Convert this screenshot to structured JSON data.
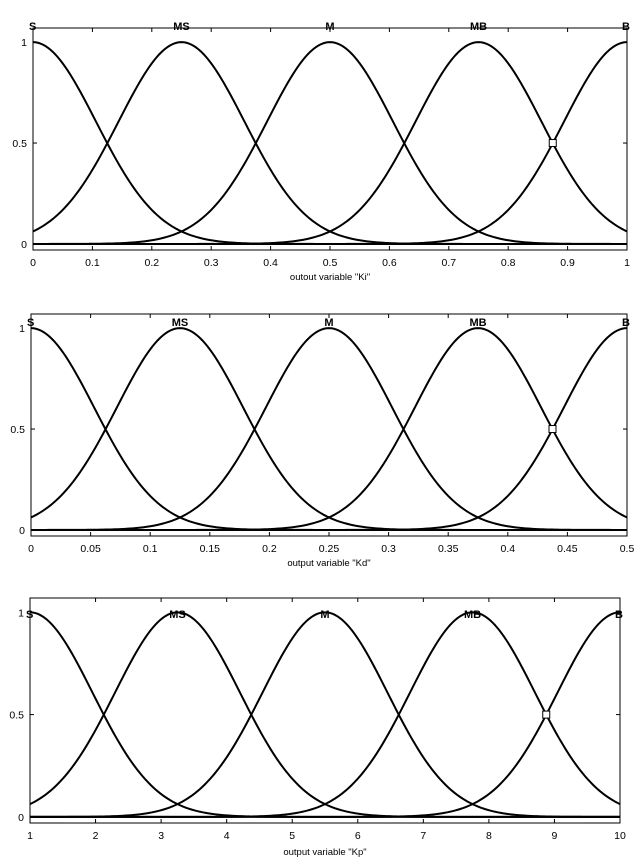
{
  "colors": {
    "background": "#ffffff",
    "curve": "#000000",
    "axes": "#000000"
  },
  "chart_data": [
    {
      "type": "line",
      "title": "",
      "xlabel": "outout variable \"Ki\"",
      "ylabel": "",
      "xlim": [
        0,
        1
      ],
      "ylim": [
        -0.03,
        1.07
      ],
      "grid": false,
      "x_ticks": [
        0,
        0.1,
        0.2,
        0.3,
        0.4,
        0.5,
        0.6,
        0.7,
        0.8,
        0.9,
        1
      ],
      "x_tick_labels": [
        "0",
        "0.1",
        "0.2",
        "0.3",
        "0.4",
        "0.5",
        "0.6",
        "0.7",
        "0.8",
        "0.9",
        "1"
      ],
      "y_ticks": [
        0,
        0.5,
        1
      ],
      "y_tick_labels": [
        "0",
        "0.5",
        "1"
      ],
      "membership_function": "gaussian",
      "sigma": 0.106,
      "series": [
        {
          "name": "S",
          "center": 0
        },
        {
          "name": "MS",
          "center": 0.25
        },
        {
          "name": "M",
          "center": 0.5
        },
        {
          "name": "MB",
          "center": 0.75
        },
        {
          "name": "B",
          "center": 1
        }
      ],
      "marker": {
        "x": 0.875,
        "y": 0.5
      }
    },
    {
      "type": "line",
      "title": "",
      "xlabel": "output variable \"Kd\"",
      "ylabel": "",
      "xlim": [
        0,
        0.5
      ],
      "ylim": [
        -0.03,
        1.07
      ],
      "grid": false,
      "x_ticks": [
        0,
        0.05,
        0.1,
        0.15,
        0.2,
        0.25,
        0.3,
        0.35,
        0.4,
        0.45,
        0.5
      ],
      "x_tick_labels": [
        "0",
        "0.05",
        "0.1",
        "0.15",
        "0.2",
        "0.25",
        "0.3",
        "0.35",
        "0.4",
        "0.45",
        "0.5"
      ],
      "y_ticks": [
        0,
        0.5,
        1
      ],
      "y_tick_labels": [
        "0",
        "0.5",
        "1"
      ],
      "membership_function": "gaussian",
      "sigma": 0.053,
      "series": [
        {
          "name": "S",
          "center": 0
        },
        {
          "name": "MS",
          "center": 0.125
        },
        {
          "name": "M",
          "center": 0.25
        },
        {
          "name": "MB",
          "center": 0.375
        },
        {
          "name": "B",
          "center": 0.5
        }
      ],
      "marker": {
        "x": 0.4375,
        "y": 0.5
      }
    },
    {
      "type": "line",
      "title": "",
      "xlabel": "output variable \"Kp\"",
      "ylabel": "",
      "xlim": [
        1,
        10
      ],
      "ylim": [
        -0.03,
        1.07
      ],
      "grid": false,
      "x_ticks": [
        1,
        2,
        3,
        4,
        5,
        6,
        7,
        8,
        9,
        10
      ],
      "x_tick_labels": [
        "1",
        "2",
        "3",
        "4",
        "5",
        "6",
        "7",
        "8",
        "9",
        "10"
      ],
      "y_ticks": [
        0,
        0.5,
        1
      ],
      "y_tick_labels": [
        "0",
        "0.5",
        "1"
      ],
      "membership_function": "gaussian",
      "sigma": 0.955,
      "series": [
        {
          "name": "S",
          "center": 1
        },
        {
          "name": "MS",
          "center": 3.25
        },
        {
          "name": "M",
          "center": 5.5
        },
        {
          "name": "MB",
          "center": 7.75
        },
        {
          "name": "B",
          "center": 10
        }
      ],
      "marker": {
        "x": 8.875,
        "y": 0.5
      }
    }
  ]
}
